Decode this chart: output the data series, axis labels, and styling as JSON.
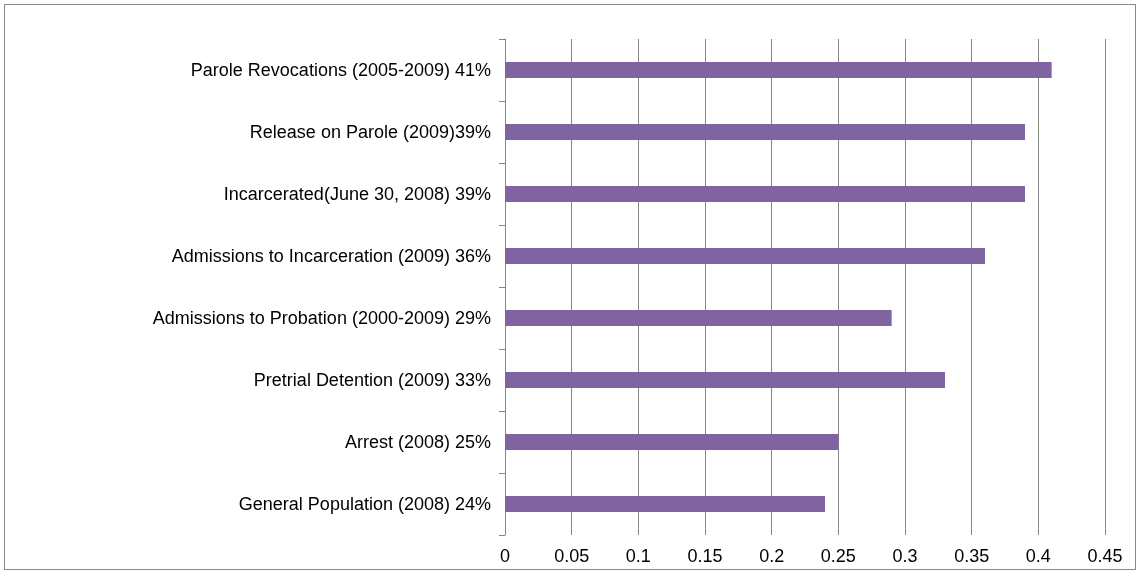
{
  "chart_data": {
    "type": "bar",
    "orientation": "horizontal",
    "categories": [
      "Parole Revocations (2005-2009) 41%",
      "Release on Parole (2009)39%",
      "Incarcerated(June 30, 2008) 39%",
      "Admissions to Incarceration (2009) 36%",
      "Admissions to Probation (2000-2009) 29%",
      "Pretrial Detention (2009) 33%",
      "Arrest (2008) 25%",
      "General Population (2008) 24%"
    ],
    "values": [
      0.41,
      0.39,
      0.39,
      0.36,
      0.29,
      0.33,
      0.25,
      0.24
    ],
    "color": "#8064a2",
    "xlim": [
      0,
      0.45
    ],
    "xticks": [
      0,
      0.05,
      0.1,
      0.15,
      0.2,
      0.25,
      0.3,
      0.35,
      0.4,
      0.45
    ],
    "grid": "x"
  }
}
